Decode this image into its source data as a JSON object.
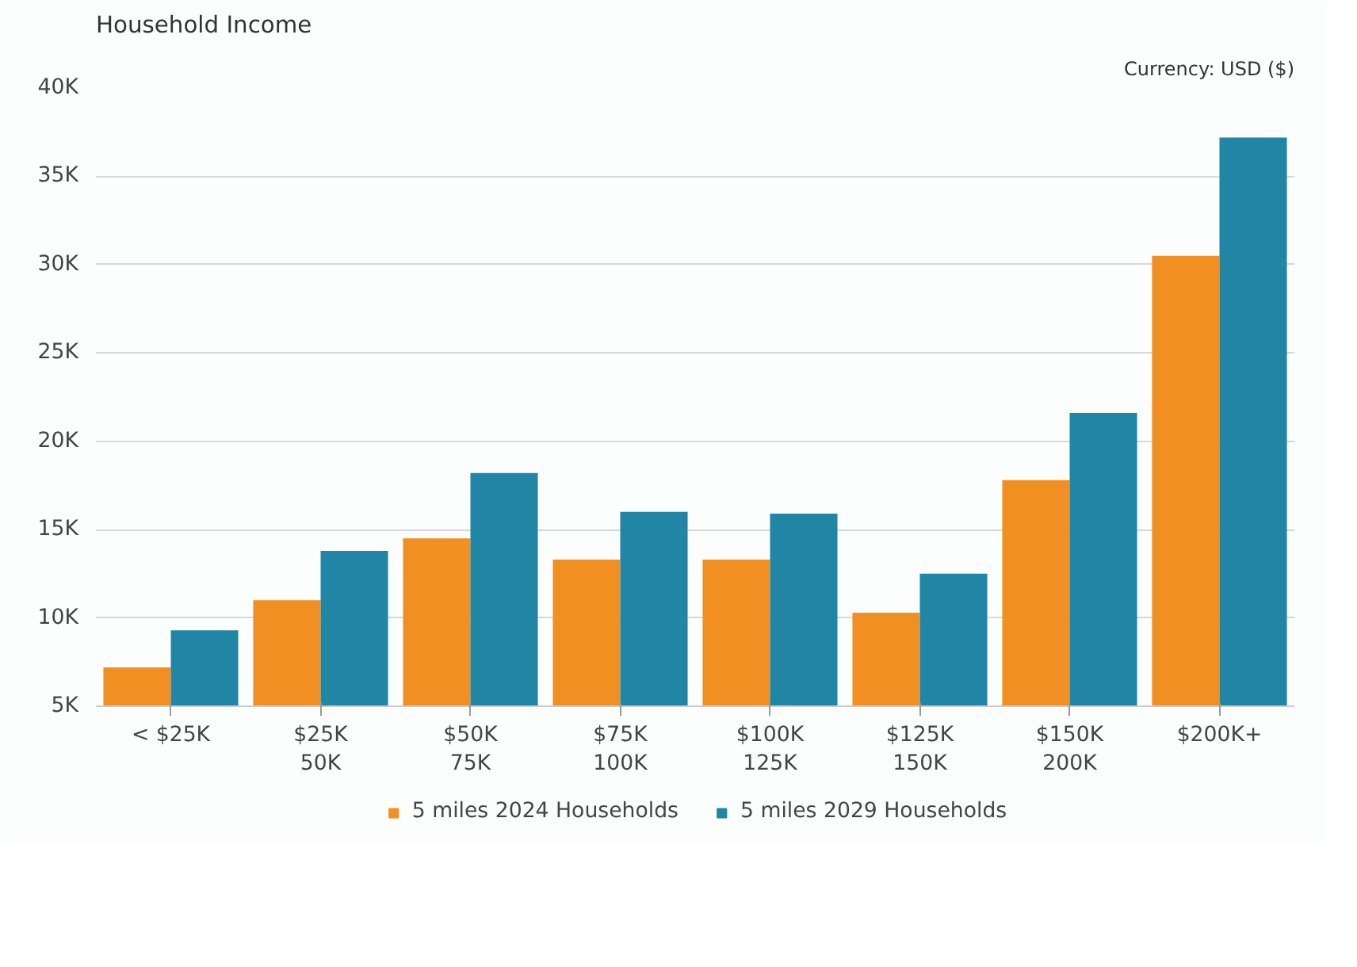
{
  "chart_data": {
    "type": "bar",
    "title": "Household Income",
    "annotations": [
      "Currency: USD ($)"
    ],
    "categories": [
      "< $25K",
      "$25K\n50K",
      "$50K\n75K",
      "$75K\n100K",
      "$100K\n125K",
      "$125K\n150K",
      "$150K\n200K",
      "$200K+"
    ],
    "series": [
      {
        "name": "5 miles 2024 Households",
        "color": "#f28f22",
        "values": [
          7200,
          11000,
          14500,
          13300,
          13300,
          10300,
          17800,
          30500
        ]
      },
      {
        "name": "5 miles 2029 Households",
        "color": "#2186a5",
        "values": [
          9300,
          13800,
          18200,
          16000,
          15900,
          12500,
          21600,
          37200
        ]
      }
    ],
    "ylim": [
      5000,
      40000
    ],
    "yticks": [
      {
        "value": 5000,
        "label": "5K"
      },
      {
        "value": 10000,
        "label": "10K"
      },
      {
        "value": 15000,
        "label": "15K"
      },
      {
        "value": 20000,
        "label": "20K"
      },
      {
        "value": 25000,
        "label": "25K"
      },
      {
        "value": 30000,
        "label": "30K"
      },
      {
        "value": 35000,
        "label": "35K"
      },
      {
        "value": 40000,
        "label": "40K"
      }
    ],
    "grid": "y",
    "legend": "bottom"
  }
}
